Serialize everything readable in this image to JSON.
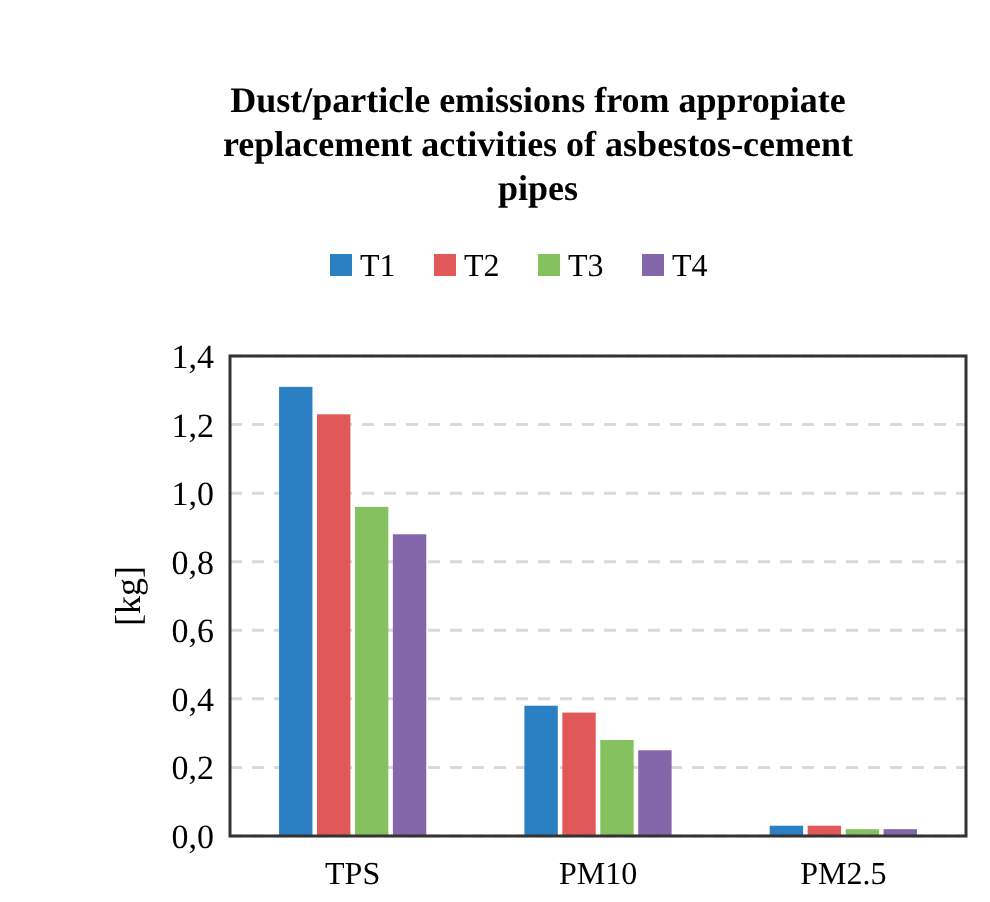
{
  "chart_data": {
    "type": "bar",
    "title": "Dust/particle emissions from appropiate replacement activities of asbestos-cement pipes",
    "ylabel": "[kg]",
    "categories": [
      "TPS",
      "PM10",
      "PM2.5"
    ],
    "series": [
      {
        "name": "T1",
        "color": "#2a80c2",
        "values": [
          1.31,
          0.38,
          0.03
        ]
      },
      {
        "name": "T2",
        "color": "#e05858",
        "values": [
          1.23,
          0.36,
          0.03
        ]
      },
      {
        "name": "T3",
        "color": "#86c160",
        "values": [
          0.96,
          0.28,
          0.02
        ]
      },
      {
        "name": "T4",
        "color": "#8467aa",
        "values": [
          0.88,
          0.25,
          0.02
        ]
      }
    ],
    "ylim": [
      0,
      1.4
    ],
    "yticks": [
      {
        "value": 0,
        "label": "0,0"
      },
      {
        "value": 0.2,
        "label": "0,2"
      },
      {
        "value": 0.4,
        "label": "0,4"
      },
      {
        "value": 0.6,
        "label": "0,6"
      },
      {
        "value": 0.8,
        "label": "0,8"
      },
      {
        "value": 1,
        "label": "1,0"
      },
      {
        "value": 1.2,
        "label": "1,2"
      },
      {
        "value": 1.4,
        "label": "1,4"
      }
    ],
    "grid": "y",
    "legend": "top"
  }
}
